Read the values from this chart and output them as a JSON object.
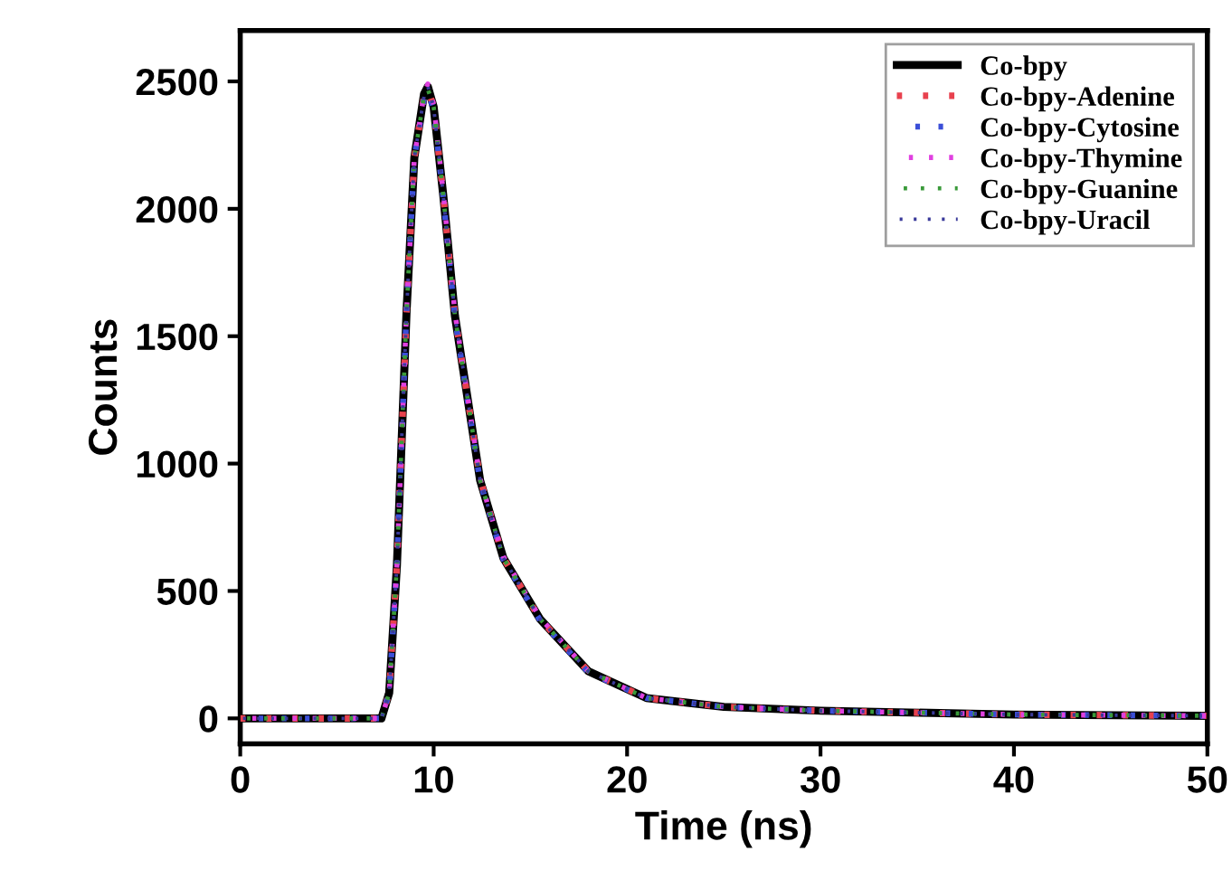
{
  "chart_data": {
    "type": "line",
    "xlabel": "Time (ns)",
    "ylabel": "Counts",
    "x": [
      0,
      5,
      7.3,
      7.7,
      8.1,
      8.6,
      9.0,
      9.5,
      9.7,
      10.0,
      10.5,
      11.1,
      12.4,
      13.6,
      15.5,
      18,
      21,
      25,
      30,
      40,
      50
    ],
    "xlim": [
      0,
      50
    ],
    "xticks": [
      0,
      10,
      20,
      30,
      40,
      50
    ],
    "ylim": [
      -100,
      2700
    ],
    "yticks": [
      0,
      500,
      1000,
      1500,
      2000,
      2500
    ],
    "legend": "top right",
    "grid": false,
    "marker": "none",
    "series": [
      {
        "name": "Co-bpy",
        "color": "#000000",
        "line_style": "solid",
        "values": [
          0,
          0,
          0,
          100,
          600,
          1600,
          2200,
          2450,
          2480,
          2400,
          2050,
          1580,
          935,
          630,
          390,
          185,
          80,
          45,
          30,
          15,
          10
        ]
      },
      {
        "name": "Co-bpy-Adenine",
        "color": "#e8414e",
        "line_style": "dotted",
        "values": [
          0,
          0,
          0,
          100,
          600,
          1600,
          2200,
          2440,
          2470,
          2400,
          2050,
          1580,
          940,
          630,
          390,
          185,
          80,
          45,
          30,
          15,
          10
        ]
      },
      {
        "name": "Co-bpy-Cytosine",
        "color": "#3b4fd8",
        "line_style": "dotted",
        "values": [
          0,
          0,
          0,
          100,
          600,
          1600,
          2200,
          2430,
          2460,
          2390,
          2040,
          1570,
          930,
          625,
          385,
          180,
          80,
          45,
          30,
          15,
          10
        ]
      },
      {
        "name": "Co-bpy-Thymine",
        "color": "#e040e0",
        "line_style": "dotted",
        "values": [
          0,
          0,
          0,
          100,
          600,
          1600,
          2200,
          2450,
          2490,
          2410,
          2060,
          1590,
          940,
          635,
          395,
          185,
          80,
          45,
          30,
          15,
          10
        ]
      },
      {
        "name": "Co-bpy-Guanine",
        "color": "#3a9a3a",
        "line_style": "dotted",
        "values": [
          0,
          0,
          0,
          100,
          600,
          1600,
          2200,
          2440,
          2470,
          2400,
          2050,
          1580,
          935,
          630,
          390,
          185,
          80,
          45,
          30,
          15,
          10
        ]
      },
      {
        "name": "Co-bpy-Uracil",
        "color": "#3a3a9a",
        "line_style": "dotted",
        "values": [
          0,
          0,
          0,
          100,
          600,
          1600,
          2200,
          2440,
          2480,
          2400,
          2050,
          1580,
          935,
          630,
          390,
          185,
          80,
          45,
          30,
          15,
          10
        ]
      }
    ]
  }
}
